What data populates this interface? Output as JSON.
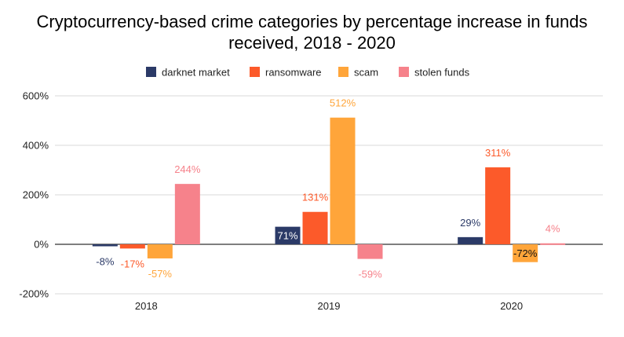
{
  "chart_data": {
    "type": "bar",
    "title_line1": "Cryptocurrency-based crime categories by percentage increase in funds",
    "title_line2": "received, 2018 - 2020",
    "categories": [
      "2018",
      "2019",
      "2020"
    ],
    "series": [
      {
        "name": "darknet market",
        "color": "#2b3a67",
        "values": [
          -8,
          71,
          29
        ],
        "labels": [
          "-8%",
          "71%",
          "29%"
        ]
      },
      {
        "name": "ransomware",
        "color": "#fc5a2a",
        "values": [
          -17,
          131,
          311
        ],
        "labels": [
          "-17%",
          "131%",
          "311%"
        ]
      },
      {
        "name": "scam",
        "color": "#ffa53a",
        "values": [
          -57,
          512,
          -72
        ],
        "labels": [
          "-57%",
          "512%",
          "-72%"
        ]
      },
      {
        "name": "stolen funds",
        "color": "#f6828b",
        "values": [
          244,
          -59,
          4
        ],
        "labels": [
          "244%",
          "-59%",
          "4%"
        ]
      }
    ],
    "ylim": [
      -200,
      600
    ],
    "yticks": [
      600,
      400,
      200,
      0,
      -200
    ],
    "ytick_labels": [
      "600%",
      "400%",
      "200%",
      "0%",
      "-200%"
    ],
    "legend_position": "top",
    "grid": true
  }
}
